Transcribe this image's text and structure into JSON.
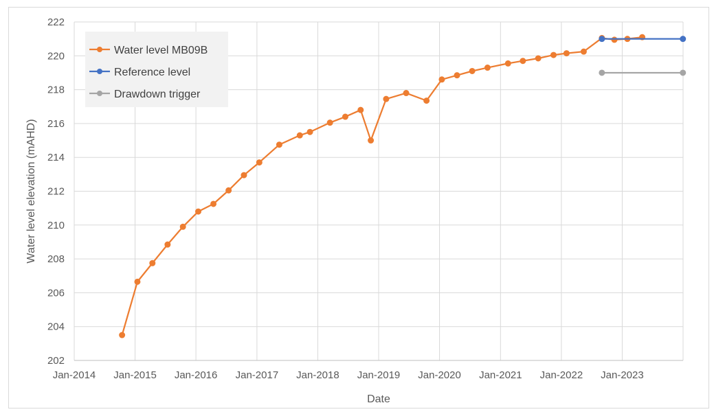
{
  "chart_data": {
    "type": "line",
    "xlabel": "Date",
    "ylabel": "Water level elevation (mAHD)",
    "ylim": [
      202,
      222
    ],
    "y_ticks": [
      "202",
      "204",
      "206",
      "208",
      "210",
      "212",
      "214",
      "216",
      "218",
      "220",
      "222"
    ],
    "x_ticks": [
      "Jan-2014",
      "Jan-2015",
      "Jan-2016",
      "Jan-2017",
      "Jan-2018",
      "Jan-2019",
      "Jan-2020",
      "Jan-2021",
      "Jan-2022",
      "Jan-2023"
    ],
    "xlim": [
      "2014-01-01",
      "2024-01-01"
    ],
    "grid": "vertical and horizontal",
    "legend_position": "top-left",
    "series": [
      {
        "name": "Water level MB09B",
        "color": "#ED7D31",
        "points": [
          [
            "2014-10-15",
            203.5
          ],
          [
            "2015-01-15",
            206.65
          ],
          [
            "2015-04-15",
            207.75
          ],
          [
            "2015-07-15",
            208.85
          ],
          [
            "2015-10-15",
            209.9
          ],
          [
            "2016-01-15",
            210.8
          ],
          [
            "2016-04-15",
            211.25
          ],
          [
            "2016-07-15",
            212.05
          ],
          [
            "2016-10-15",
            212.95
          ],
          [
            "2017-01-15",
            213.7
          ],
          [
            "2017-05-15",
            214.75
          ],
          [
            "2017-09-15",
            215.3
          ],
          [
            "2017-11-15",
            215.5
          ],
          [
            "2018-03-15",
            216.05
          ],
          [
            "2018-06-15",
            216.4
          ],
          [
            "2018-09-15",
            216.8
          ],
          [
            "2018-11-15",
            215.0
          ],
          [
            "2019-02-15",
            217.45
          ],
          [
            "2019-06-15",
            217.8
          ],
          [
            "2019-10-15",
            217.35
          ],
          [
            "2020-01-15",
            218.6
          ],
          [
            "2020-04-15",
            218.85
          ],
          [
            "2020-07-15",
            219.1
          ],
          [
            "2020-10-15",
            219.3
          ],
          [
            "2021-02-15",
            219.55
          ],
          [
            "2021-05-15",
            219.7
          ],
          [
            "2021-08-15",
            219.85
          ],
          [
            "2021-11-15",
            220.05
          ],
          [
            "2022-02-01",
            220.15
          ],
          [
            "2022-05-15",
            220.25
          ],
          [
            "2022-09-01",
            221.05
          ],
          [
            "2022-11-15",
            220.95
          ],
          [
            "2023-02-01",
            221.0
          ],
          [
            "2023-05-01",
            221.1
          ]
        ]
      },
      {
        "name": "Reference level",
        "color": "#4472C4",
        "points": [
          [
            "2022-09-01",
            221.0
          ],
          [
            "2023-12-31",
            221.0
          ]
        ]
      },
      {
        "name": "Drawdown trigger",
        "color": "#A5A5A5",
        "points": [
          [
            "2022-09-01",
            219.0
          ],
          [
            "2023-12-31",
            219.0
          ]
        ]
      }
    ]
  }
}
